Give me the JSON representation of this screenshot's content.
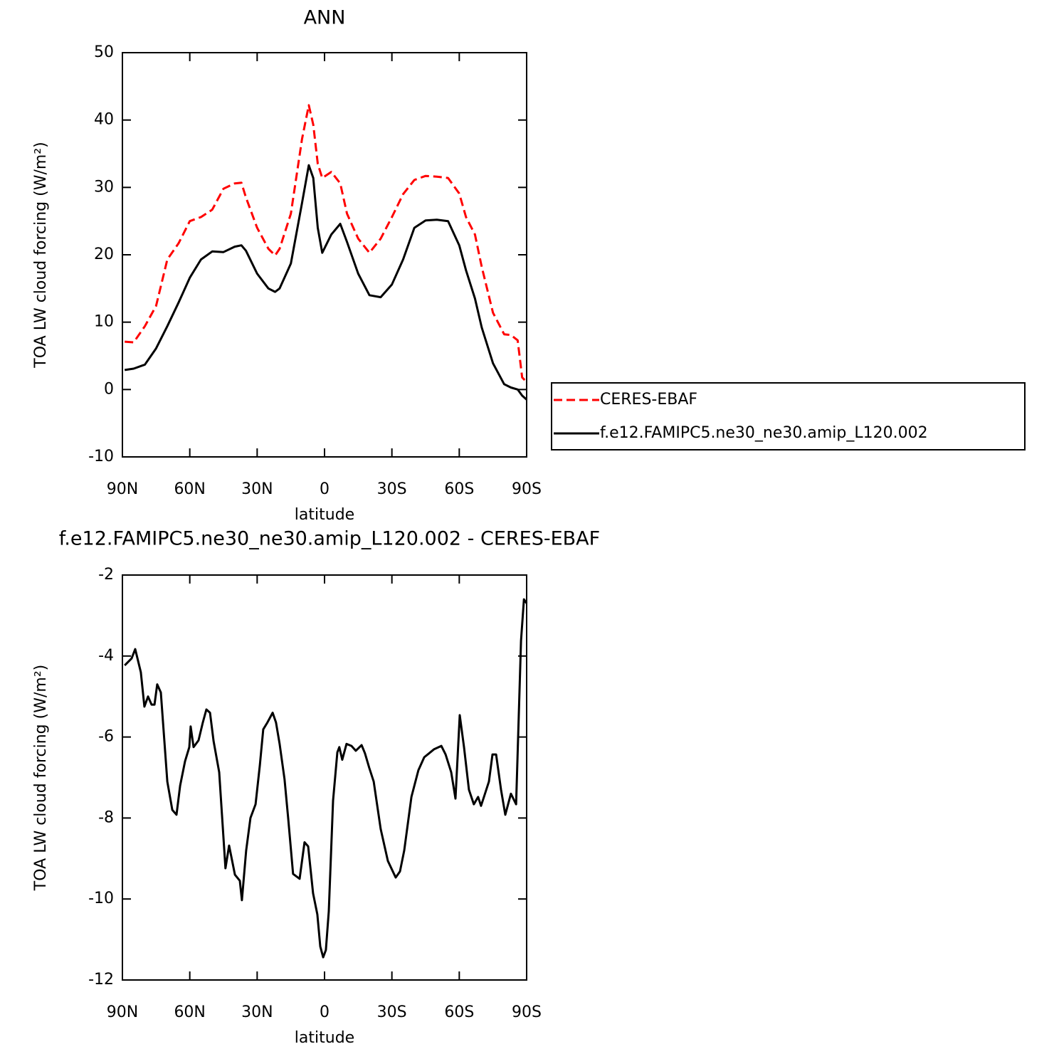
{
  "chart_data": [
    {
      "type": "line",
      "title": "ANN",
      "xlabel": "latitude",
      "ylabel": "TOA LW cloud forcing (W/m²)",
      "xlim": [
        90,
        -90
      ],
      "ylim": [
        -10,
        50
      ],
      "xticks": [
        {
          "value": 90,
          "label": "90N"
        },
        {
          "value": 60,
          "label": "60N"
        },
        {
          "value": 30,
          "label": "30N"
        },
        0,
        {
          "value": -30,
          "label": "30S"
        },
        {
          "value": -60,
          "label": "60S"
        },
        {
          "value": -90,
          "label": "90S"
        }
      ],
      "yticks": [
        -10,
        0,
        10,
        20,
        30,
        40,
        50
      ],
      "x": [
        89,
        85,
        80,
        75,
        70,
        65,
        60,
        55,
        50,
        45,
        40,
        37,
        35,
        30,
        25,
        22,
        20,
        15,
        10,
        7,
        5,
        3,
        1,
        -3,
        -7,
        -10,
        -15,
        -20,
        -25,
        -30,
        -35,
        -40,
        -45,
        -50,
        -55,
        -60,
        -63,
        -67,
        -70,
        -75,
        -80,
        -83,
        -86,
        -88,
        -90
      ],
      "series": [
        {
          "name": "CERES-EBAF",
          "color": "#ff0000",
          "dashed": true,
          "values": [
            7.1,
            7.0,
            9.4,
            12.4,
            19.3,
            21.7,
            25.0,
            25.6,
            26.7,
            29.8,
            30.6,
            30.7,
            28.5,
            24.0,
            20.9,
            19.9,
            20.9,
            26.1,
            37.2,
            42.2,
            39.3,
            33.5,
            31.4,
            32.3,
            30.6,
            26.1,
            22.4,
            20.3,
            22.4,
            25.6,
            29.0,
            31.1,
            31.7,
            31.6,
            31.4,
            29.1,
            25.6,
            23.0,
            18.2,
            11.4,
            8.2,
            8.1,
            7.3,
            1.8,
            1.1
          ]
        },
        {
          "name": "f.e12.FAMIPC5.ne30_ne30.amip_L120.002",
          "color": "#000000",
          "dashed": false,
          "values": [
            2.9,
            3.1,
            3.7,
            6.1,
            9.4,
            12.9,
            16.6,
            19.3,
            20.5,
            20.4,
            21.2,
            21.4,
            20.6,
            17.2,
            15.0,
            14.5,
            15.0,
            18.7,
            27.7,
            33.3,
            31.4,
            24.0,
            20.3,
            23.0,
            24.6,
            21.9,
            17.2,
            14.0,
            13.7,
            15.6,
            19.3,
            24.0,
            25.1,
            25.2,
            25.0,
            21.4,
            17.7,
            13.5,
            9.2,
            3.9,
            0.8,
            0.3,
            0.0,
            -0.9,
            -1.5
          ]
        }
      ]
    },
    {
      "type": "line",
      "title": "f.e12.FAMIPC5.ne30_ne30.amip_L120.002 - CERES-EBAF",
      "xlabel": "latitude",
      "ylabel": "TOA LW cloud forcing (W/m²)",
      "xlim": [
        90,
        -90
      ],
      "ylim": [
        -12,
        -2
      ],
      "xticks": [
        {
          "value": 90,
          "label": "90N"
        },
        {
          "value": 60,
          "label": "60N"
        },
        {
          "value": 30,
          "label": "30N"
        },
        0,
        {
          "value": -30,
          "label": "30S"
        },
        {
          "value": -60,
          "label": "60S"
        },
        {
          "value": -90,
          "label": "90S"
        }
      ],
      "yticks": [
        -12,
        -10,
        -8,
        -6,
        -4,
        -2
      ],
      "x": [
        89.0,
        85.9,
        84.3,
        81.8,
        80.2,
        78.6,
        77.0,
        75.7,
        74.5,
        72.9,
        70.0,
        67.8,
        65.9,
        64.3,
        62.1,
        60.2,
        59.6,
        58.3,
        56.1,
        54.2,
        52.6,
        51.0,
        49.4,
        46.9,
        44.1,
        42.5,
        39.9,
        37.7,
        36.8,
        34.9,
        33.0,
        30.7,
        28.8,
        27.3,
        25.4,
        23.1,
        21.6,
        20.0,
        17.8,
        16.2,
        14.0,
        11.1,
        8.9,
        7.3,
        5.1,
        3.2,
        1.9,
        0.6,
        -0.6,
        -1.9,
        -3.8,
        -5.7,
        -6.6,
        -7.9,
        -9.8,
        -12.0,
        -13.9,
        -16.5,
        -18.0,
        -19.9,
        -21.9,
        -25.0,
        -28.2,
        -31.7,
        -33.6,
        -35.5,
        -38.7,
        -41.8,
        -44.4,
        -46.6,
        -48.8,
        -52.0,
        -53.9,
        -56.4,
        -58.3,
        -60.2,
        -62.1,
        -64.3,
        -66.5,
        -68.4,
        -69.7,
        -71.0,
        -73.2,
        -74.8,
        -76.4,
        -78.6,
        -80.5,
        -83.0,
        -85.3,
        -87.5,
        -88.8,
        -90.0
      ],
      "series": [
        {
          "color": "#000000",
          "dashed": false,
          "values": [
            -4.23,
            -4.06,
            -3.83,
            -4.4,
            -5.25,
            -5.0,
            -5.2,
            -5.2,
            -4.7,
            -4.9,
            -7.1,
            -7.8,
            -7.92,
            -7.2,
            -6.6,
            -6.25,
            -5.74,
            -6.25,
            -6.08,
            -5.64,
            -5.32,
            -5.4,
            -6.1,
            -6.87,
            -9.24,
            -8.68,
            -9.4,
            -9.55,
            -10.03,
            -8.8,
            -8.0,
            -7.66,
            -6.7,
            -5.81,
            -5.64,
            -5.4,
            -5.64,
            -6.17,
            -7.04,
            -8.0,
            -9.38,
            -9.5,
            -8.6,
            -8.7,
            -9.86,
            -10.38,
            -11.17,
            -11.44,
            -11.26,
            -10.3,
            -7.57,
            -6.38,
            -6.25,
            -6.56,
            -6.17,
            -6.22,
            -6.34,
            -6.2,
            -6.4,
            -6.76,
            -7.1,
            -8.27,
            -9.06,
            -9.47,
            -9.32,
            -8.8,
            -7.48,
            -6.82,
            -6.5,
            -6.4,
            -6.3,
            -6.22,
            -6.43,
            -6.87,
            -7.52,
            -5.46,
            -6.25,
            -7.3,
            -7.66,
            -7.48,
            -7.7,
            -7.48,
            -7.1,
            -6.43,
            -6.43,
            -7.3,
            -7.92,
            -7.4,
            -7.66,
            -3.62,
            -2.6,
            -2.7
          ]
        }
      ]
    }
  ]
}
